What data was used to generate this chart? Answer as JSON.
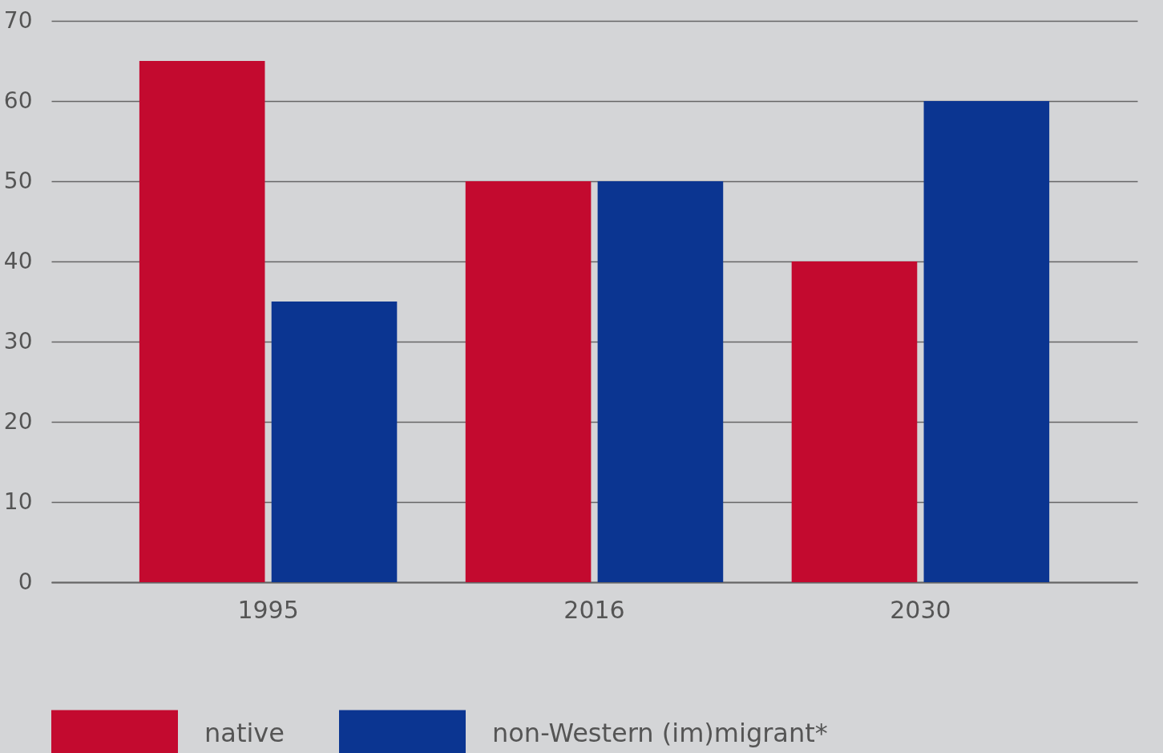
{
  "chart_data": {
    "type": "bar",
    "categories": [
      "1995",
      "2016",
      "2030"
    ],
    "series": [
      {
        "name": "native",
        "color": "#c30a2f",
        "values": [
          65,
          50,
          40
        ]
      },
      {
        "name": "non-Western (im)migrant*",
        "color": "#0b3591",
        "values": [
          35,
          50,
          60
        ]
      }
    ],
    "ylim": [
      0,
      70
    ],
    "yticks": [
      0,
      10,
      20,
      30,
      40,
      50,
      60,
      70
    ],
    "grid": "y",
    "legend": "bottom"
  }
}
